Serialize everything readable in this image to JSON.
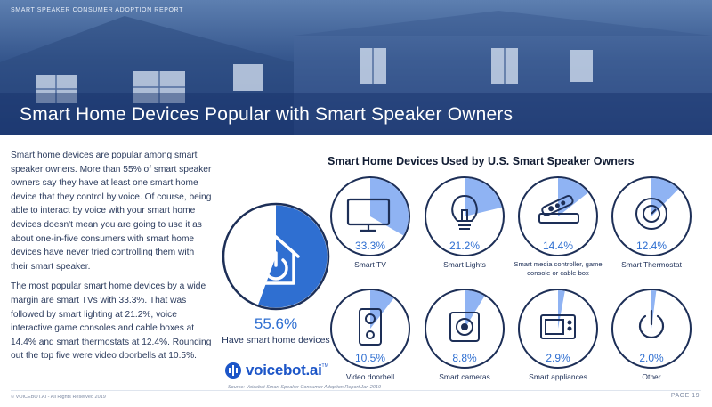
{
  "header": {
    "report_label": "SMART SPEAKER CONSUMER ADOPTION REPORT",
    "title": "Smart Home Devices Popular with Smart Speaker Owners"
  },
  "body": {
    "paragraph1": "Smart home devices are popular among smart speaker owners. More than 55% of smart speaker owners say they have at least one smart home device that they control by voice. Of course, being able to interact by voice with your smart home devices doesn't mean you are going to use it as about one-in-five consumers with smart home devices have never tried controlling them with their smart speaker.",
    "paragraph2": "The most popular smart home devices by a wide margin are smart TVs with 33.3%. That was followed by smart lighting at 21.2%, voice interactive game consoles and cable boxes at 14.4% and smart thermostats at 12.4%. Rounding out the top five were video doorbells at 10.5%."
  },
  "highlight": {
    "percent_label": "55.6%",
    "label": "Have smart home devices"
  },
  "chart_data": {
    "type": "pie",
    "title": "Smart Home Devices Used by U.S. Smart Speaker Owners",
    "highlight": {
      "name": "Have smart home devices",
      "value": 55.6
    },
    "categories": [
      "Smart TV",
      "Smart Lights",
      "Smart media controller, game console or cable box",
      "Smart Thermostat",
      "Video doorbell",
      "Smart cameras",
      "Smart appliances",
      "Other"
    ],
    "values": [
      33.3,
      21.2,
      14.4,
      12.4,
      10.5,
      8.8,
      2.9,
      2.0
    ],
    "value_labels": [
      "33.3%",
      "21.2%",
      "14.4%",
      "12.4%",
      "10.5%",
      "8.8%",
      "2.9%",
      "2.0%"
    ],
    "icons": [
      "tv-icon",
      "lightbulb-icon",
      "remote-icon",
      "thermostat-icon",
      "doorbell-icon",
      "camera-icon",
      "appliance-icon",
      "power-icon"
    ]
  },
  "logo": {
    "name": "voicebot.ai",
    "tm": "TM"
  },
  "footer": {
    "source": "Source: Voicebot Smart Speaker Consumer Adoption Report Jan 2019",
    "copyright": "© VOICEBOT.AI - All Rights Reserved 2019",
    "page": "PAGE 19"
  },
  "colors": {
    "accent": "#2f6fd1",
    "slice": "#8fb3f3",
    "ring": "#1d2f57"
  }
}
